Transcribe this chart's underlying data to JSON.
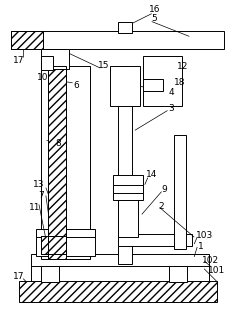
{
  "bg_color": "#ffffff",
  "line_color": "#000000",
  "fig_width": 2.48,
  "fig_height": 3.15,
  "dpi": 100
}
